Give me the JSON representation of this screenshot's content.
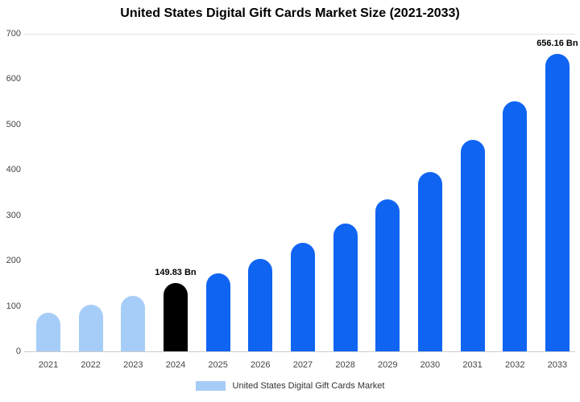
{
  "title": "United States Digital Gift Cards Market Size (2021-2033)",
  "legend": {
    "label": "United States Digital Gift Cards Market",
    "swatch_color": "#A6CDF7"
  },
  "colors": {
    "light_blue": "#A6CDF7",
    "black": "#000000",
    "primary_blue": "#1064F2"
  },
  "chart_data": {
    "type": "bar",
    "title": "United States Digital Gift Cards Market Size (2021-2033)",
    "categories": [
      "2021",
      "2022",
      "2023",
      "2024",
      "2025",
      "2026",
      "2027",
      "2028",
      "2029",
      "2030",
      "2031",
      "2032",
      "2033"
    ],
    "values": [
      85,
      103,
      122,
      149.83,
      172,
      203,
      240,
      282,
      335,
      395,
      466,
      551,
      656.16
    ],
    "bar_colors": [
      "#A6CDF7",
      "#A6CDF7",
      "#A6CDF7",
      "#000000",
      "#1064F2",
      "#1064F2",
      "#1064F2",
      "#1064F2",
      "#1064F2",
      "#1064F2",
      "#1064F2",
      "#1064F2",
      "#1064F2"
    ],
    "data_labels": {
      "2024": "149.83 Bn",
      "2033": "656.16 Bn"
    },
    "unit": "Bn",
    "xlabel": "",
    "ylabel": "",
    "ylim": [
      0,
      700
    ],
    "yticks": [
      0,
      100,
      200,
      300,
      400,
      500,
      600,
      700
    ],
    "grid": "top-line-and-baseline-only",
    "legend_position": "bottom",
    "legend_entries": [
      "United States Digital Gift Cards Market"
    ]
  }
}
